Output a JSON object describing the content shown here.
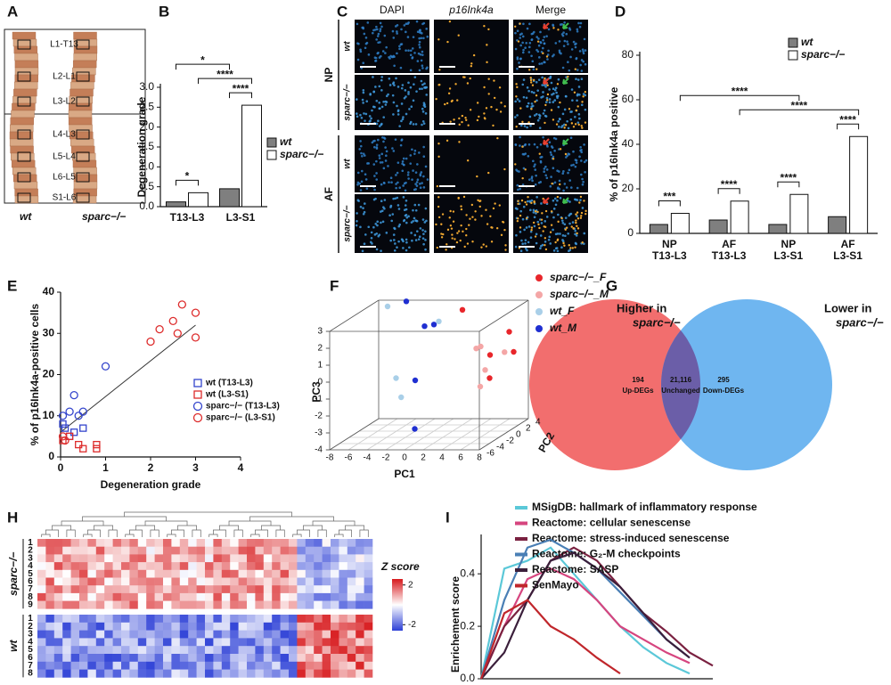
{
  "panel_labels": [
    "A",
    "B",
    "C",
    "D",
    "E",
    "F",
    "G",
    "H",
    "I"
  ],
  "panel_a": {
    "levels": [
      "L1-T13",
      "L2-L1",
      "L3-L2",
      "L4-L3",
      "L5-L4",
      "L6-L5",
      "S1-L6"
    ],
    "genotypes": [
      "wt",
      "sparc−/−"
    ]
  },
  "panel_c": {
    "columns": [
      "DAPI",
      "p16Ink4a",
      "Merge"
    ],
    "tissues": [
      "NP",
      "AF"
    ],
    "genotypes": [
      "wt",
      "sparc−/−"
    ]
  },
  "panel_g": {
    "left_title": "Higher in",
    "left_subtitle": "sparc−/−",
    "right_title": "Lower in",
    "right_subtitle": "sparc−/−",
    "left": {
      "count": "194",
      "label": "Up-DEGs"
    },
    "center": {
      "count": "21,116",
      "label": "Unchanged"
    },
    "right": {
      "count": "295",
      "label": "Down-DEGs"
    }
  },
  "panel_h": {
    "groups": [
      "sparc−/−",
      "wt"
    ],
    "group_rows": [
      [
        "1",
        "2",
        "3",
        "4",
        "5",
        "6",
        "7",
        "8",
        "9"
      ],
      [
        "1",
        "2",
        "3",
        "4",
        "5",
        "6",
        "7",
        "8"
      ]
    ],
    "legend_title": "Z score",
    "zlim": [
      -2.6,
      2.6
    ],
    "zticks": [
      2,
      -2
    ]
  },
  "chart_data": [
    {
      "type": "bar",
      "y_label": "Degeneration grade",
      "categories": [
        "T13-L3",
        "L3-S1"
      ],
      "ylim": [
        0,
        3
      ],
      "yticks": [
        {
          "value": 0,
          "label": "0.0"
        },
        0.5,
        {
          "value": 1,
          "label": "1.0"
        },
        1.5,
        {
          "value": 2,
          "label": "2.0"
        },
        2.5,
        {
          "value": 3,
          "label": "3.0"
        }
      ],
      "series": [
        {
          "name": "wt",
          "color": "#7f7f7f",
          "values": [
            0.12,
            0.45
          ]
        },
        {
          "name": "sparc−/−",
          "color": "#ffffff",
          "values": [
            0.35,
            2.55
          ]
        }
      ],
      "legend": "right",
      "annotations": [
        {
          "text": "****",
          "from": [
            1,
            0
          ],
          "to": [
            1,
            1
          ]
        },
        {
          "text": "*",
          "from": [
            0,
            0
          ],
          "to": [
            0,
            1
          ]
        },
        {
          "text": "****",
          "from": [
            0,
            1
          ],
          "to": [
            1,
            1
          ]
        },
        {
          "text": "*",
          "from": [
            0,
            0
          ],
          "to": [
            1,
            0
          ]
        }
      ]
    },
    {
      "type": "bar",
      "y_label": "% of p16Ink4a positive",
      "categories": [
        "NP",
        "AF",
        "NP",
        "AF"
      ],
      "sublabels": [
        "T13-L3",
        "T13-L3",
        "L3-S1",
        "L3-S1"
      ],
      "ylim": [
        0,
        80
      ],
      "yticks": [
        0,
        20,
        40,
        60,
        80
      ],
      "series": [
        {
          "name": "wt",
          "color": "#7f7f7f",
          "values": [
            4,
            6,
            4,
            7.5
          ]
        },
        {
          "name": "sparc−/−",
          "color": "#ffffff",
          "values": [
            9,
            14.5,
            17.5,
            43.5
          ]
        }
      ],
      "legend": "top-right",
      "annotations": [
        {
          "text": "***",
          "from": [
            0,
            0
          ],
          "to": [
            0,
            1
          ]
        },
        {
          "text": "****",
          "from": [
            1,
            0
          ],
          "to": [
            1,
            1
          ]
        },
        {
          "text": "****",
          "from": [
            2,
            0
          ],
          "to": [
            2,
            1
          ]
        },
        {
          "text": "****",
          "from": [
            3,
            0
          ],
          "to": [
            3,
            1
          ]
        },
        {
          "text": "****",
          "from": [
            1,
            1
          ],
          "to": [
            3,
            1
          ]
        },
        {
          "text": "****",
          "from": [
            0,
            1
          ],
          "to": [
            2,
            1
          ]
        }
      ]
    },
    {
      "type": "scatter",
      "x_label": "Degeneration grade",
      "y_label": "% of p16Ink4a-positive cells",
      "xlim": [
        0,
        4
      ],
      "xticks": [
        0,
        1,
        2,
        3,
        4
      ],
      "ylim": [
        0,
        40
      ],
      "yticks": [
        0,
        10,
        20,
        30,
        40
      ],
      "series": [
        {
          "name": "wt (T13-L3)",
          "color": "#3344cc",
          "marker": "square",
          "x": [
            0.05,
            0.1,
            0.2,
            0.3,
            0.5
          ],
          "values": [
            8,
            7,
            5,
            6,
            7
          ]
        },
        {
          "name": "wt (L3-S1)",
          "color": "#dd2b2b",
          "marker": "square",
          "x": [
            0.05,
            0.2,
            0.4,
            0.5,
            0.8,
            0.8
          ],
          "values": [
            4,
            5,
            3,
            2,
            2,
            3
          ]
        },
        {
          "name": "sparc−/− (T13-L3)",
          "color": "#3344cc",
          "marker": "circle",
          "x": [
            0.05,
            0.2,
            0.3,
            0.4,
            0.5,
            1.0
          ],
          "values": [
            10,
            11,
            15,
            10,
            11,
            22
          ]
        },
        {
          "name": "sparc−/− (L3-S1)",
          "color": "#dd2b2b",
          "marker": "circle",
          "x": [
            0.05,
            0.1,
            2.0,
            2.2,
            2.5,
            2.7,
            3.0,
            3.0,
            2.6
          ],
          "values": [
            5,
            4,
            28,
            31,
            33,
            37,
            35,
            29,
            30
          ]
        }
      ],
      "trend_line": {
        "x": [
          0,
          3
        ],
        "y": [
          6,
          32
        ]
      },
      "legend": "right"
    },
    {
      "type": "scatter3d",
      "x_label": "PC1",
      "y_label": "PC2",
      "z_label": "PC3",
      "xlim": [
        -8,
        8
      ],
      "xticks": [
        -8,
        -6,
        -4,
        -2,
        0,
        2,
        4,
        6,
        8
      ],
      "ylim": [
        -6,
        4
      ],
      "yticks": [
        -6,
        -4,
        -2,
        0,
        2,
        4
      ],
      "zlim": [
        -4,
        3
      ],
      "zticks": [
        -4,
        -3,
        -2,
        -1,
        0,
        1,
        2,
        3
      ],
      "series": [
        {
          "name": "sparc−/−_F",
          "color": "#e8262b",
          "x": [
            2,
            6,
            7,
            7,
            8
          ],
          "y": [
            2,
            0,
            2,
            -2,
            1
          ],
          "z": [
            2.8,
            0.5,
            1.5,
            -0.5,
            0.5
          ]
        },
        {
          "name": "sparc−/−_M",
          "color": "#f4a6a6",
          "x": [
            5,
            6,
            6.5,
            6,
            4
          ],
          "y": [
            0,
            -1,
            2,
            -2,
            1
          ],
          "z": [
            1,
            -0.2,
            0.3,
            -1,
            0.7
          ]
        },
        {
          "name": "wt_F",
          "color": "#a9cfe8",
          "x": [
            -6,
            -3,
            -3.5,
            0
          ],
          "y": [
            2,
            -2,
            0,
            1
          ],
          "z": [
            3,
            -0.5,
            -2,
            2.3
          ]
        },
        {
          "name": "wt_M",
          "color": "#1f2fd1",
          "x": [
            -4,
            -1,
            0,
            -1,
            -2
          ],
          "y": [
            2,
            0,
            0,
            -2,
            0
          ],
          "z": [
            3.3,
            2.2,
            2.3,
            -3.5,
            -1
          ]
        }
      ],
      "legend": "right"
    },
    {
      "type": "line",
      "y_label": "Enrichement score",
      "xlim": [
        0,
        100
      ],
      "x": [
        0,
        10,
        20,
        30,
        40,
        50,
        60,
        70,
        80,
        90,
        100
      ],
      "ylim": [
        0,
        0.55
      ],
      "yticks": [
        {
          "value": 0,
          "label": "0.0"
        },
        0.2,
        0.4
      ],
      "series": [
        {
          "name": "MSigDB: hallmark of inflammatory response",
          "color": "#5bc8d8",
          "values": [
            0,
            0.42,
            0.45,
            0.5,
            0.4,
            0.3,
            0.2,
            0.12,
            0.06,
            0.02,
            null
          ]
        },
        {
          "name": "Reactome: cellular senescense",
          "color": "#d6457f",
          "values": [
            0,
            0.2,
            0.38,
            0.42,
            0.38,
            0.3,
            0.2,
            0.15,
            0.1,
            0.06,
            null
          ]
        },
        {
          "name": "Reactome: stress-induced senescense",
          "color": "#7a2140",
          "values": [
            0,
            0.2,
            0.3,
            0.45,
            0.5,
            0.45,
            0.35,
            0.25,
            0.18,
            0.1,
            0.05
          ]
        },
        {
          "name": "Reactome: G₂-M checkpoints",
          "color": "#4a7fb5",
          "values": [
            0,
            0.3,
            0.5,
            0.53,
            0.48,
            0.42,
            0.33,
            0.24,
            0.15,
            0.08,
            null
          ]
        },
        {
          "name": "Reactome: SASP",
          "color": "#3b1f3b",
          "values": [
            0,
            0.1,
            0.3,
            0.45,
            0.48,
            0.42,
            0.35,
            0.25,
            0.15,
            0.08,
            null
          ]
        },
        {
          "name": "SenMayo",
          "color": "#c0262b",
          "values": [
            0,
            0.25,
            0.3,
            0.2,
            0.15,
            0.08,
            0.02,
            null,
            null,
            null,
            null
          ]
        }
      ],
      "legend": "top-right"
    }
  ]
}
